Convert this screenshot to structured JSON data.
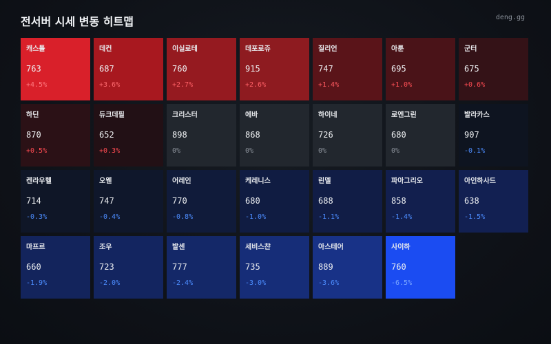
{
  "header": {
    "title": "전서버 시세 변동 히트맵",
    "brand": "deng.gg"
  },
  "tiles": [
    {
      "name": "캐스톨",
      "price": "763",
      "change": "+4.5%",
      "bg": "#d9202a",
      "fg": "#ff7a80"
    },
    {
      "name": "데컨",
      "price": "687",
      "change": "+3.6%",
      "bg": "#a8181f",
      "fg": "#ff6b70"
    },
    {
      "name": "이실로테",
      "price": "760",
      "change": "+2.7%",
      "bg": "#951a20",
      "fg": "#ff6066"
    },
    {
      "name": "데포로쥬",
      "price": "915",
      "change": "+2.6%",
      "bg": "#8e1b20",
      "fg": "#ff6066"
    },
    {
      "name": "질리언",
      "price": "747",
      "change": "+1.4%",
      "bg": "#5a1419",
      "fg": "#ff5a60"
    },
    {
      "name": "아툰",
      "price": "695",
      "change": "+1.0%",
      "bg": "#4a1318",
      "fg": "#ff5056"
    },
    {
      "name": "군터",
      "price": "675",
      "change": "+0.6%",
      "bg": "#341217",
      "fg": "#ff4b52"
    },
    {
      "name": "하딘",
      "price": "870",
      "change": "+0.5%",
      "bg": "#2b1116",
      "fg": "#ff4b52"
    },
    {
      "name": "듀크데필",
      "price": "652",
      "change": "+0.3%",
      "bg": "#221015",
      "fg": "#ff4b52"
    },
    {
      "name": "크리스터",
      "price": "898",
      "change": "0%",
      "bg": "#22272e",
      "fg": "#8b919a"
    },
    {
      "name": "에바",
      "price": "868",
      "change": "0%",
      "bg": "#22272e",
      "fg": "#8b919a"
    },
    {
      "name": "하이네",
      "price": "726",
      "change": "0%",
      "bg": "#22272e",
      "fg": "#8b919a"
    },
    {
      "name": "로엔그린",
      "price": "680",
      "change": "0%",
      "bg": "#22272e",
      "fg": "#8b919a"
    },
    {
      "name": "발라카스",
      "price": "907",
      "change": "-0.1%",
      "bg": "#0e1420",
      "fg": "#4d8dff"
    },
    {
      "name": "켄라우헬",
      "price": "714",
      "change": "-0.3%",
      "bg": "#0f1627",
      "fg": "#4d8dff"
    },
    {
      "name": "오웬",
      "price": "747",
      "change": "-0.4%",
      "bg": "#0f172b",
      "fg": "#4d8dff"
    },
    {
      "name": "어레인",
      "price": "770",
      "change": "-0.8%",
      "bg": "#101b3a",
      "fg": "#4d8dff"
    },
    {
      "name": "케레니스",
      "price": "680",
      "change": "-1.0%",
      "bg": "#101c42",
      "fg": "#4d8dff"
    },
    {
      "name": "린델",
      "price": "688",
      "change": "-1.1%",
      "bg": "#111d46",
      "fg": "#4d8dff"
    },
    {
      "name": "파아그리오",
      "price": "858",
      "change": "-1.4%",
      "bg": "#121f4e",
      "fg": "#4d8dff"
    },
    {
      "name": "아인하사드",
      "price": "638",
      "change": "-1.5%",
      "bg": "#122052",
      "fg": "#4d8dff"
    },
    {
      "name": "마프르",
      "price": "660",
      "change": "-1.9%",
      "bg": "#13245c",
      "fg": "#4d8dff"
    },
    {
      "name": "조우",
      "price": "723",
      "change": "-2.0%",
      "bg": "#132560",
      "fg": "#4d8dff"
    },
    {
      "name": "발센",
      "price": "777",
      "change": "-2.4%",
      "bg": "#142868",
      "fg": "#4d8dff"
    },
    {
      "name": "세비스챤",
      "price": "735",
      "change": "-3.0%",
      "bg": "#162d78",
      "fg": "#4d8dff"
    },
    {
      "name": "아스테어",
      "price": "889",
      "change": "-3.6%",
      "bg": "#183287",
      "fg": "#4d8dff"
    },
    {
      "name": "사이하",
      "price": "760",
      "change": "-6.5%",
      "bg": "#1b4cf2",
      "fg": "#7aa6ff"
    }
  ]
}
